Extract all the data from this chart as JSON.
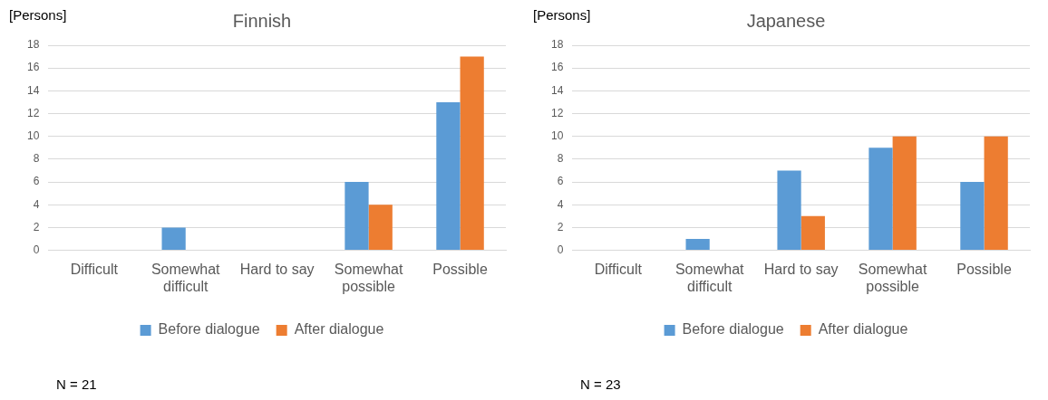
{
  "chart_data": [
    {
      "type": "bar",
      "title": "Finnish",
      "ylabel": "[Persons]",
      "categories": [
        "Difficult",
        "Somewhat difficult",
        "Hard to say",
        "Somewhat possible",
        "Possible"
      ],
      "series": [
        {
          "name": "Before dialogue",
          "color": "#5b9bd5",
          "values": [
            0,
            2,
            0,
            6,
            13
          ]
        },
        {
          "name": "After dialogue",
          "color": "#ed7d31",
          "values": [
            0,
            0,
            0,
            4,
            17
          ]
        }
      ],
      "ylim": [
        0,
        18
      ],
      "yticks": [
        0,
        2,
        4,
        6,
        8,
        10,
        12,
        14,
        16,
        18
      ],
      "grid": "y",
      "legend": "bottom",
      "annotations": [
        "N = 21"
      ]
    },
    {
      "type": "bar",
      "title": "Japanese",
      "ylabel": "[Persons]",
      "categories": [
        "Difficult",
        "Somewhat difficult",
        "Hard to say",
        "Somewhat possible",
        "Possible"
      ],
      "series": [
        {
          "name": "Before dialogue",
          "color": "#5b9bd5",
          "values": [
            0,
            1,
            7,
            9,
            6
          ]
        },
        {
          "name": "After dialogue",
          "color": "#ed7d31",
          "values": [
            0,
            0,
            3,
            10,
            10
          ]
        }
      ],
      "ylim": [
        0,
        18
      ],
      "yticks": [
        0,
        2,
        4,
        6,
        8,
        10,
        12,
        14,
        16,
        18
      ],
      "grid": "y",
      "legend": "bottom",
      "annotations": [
        "N = 23"
      ]
    }
  ]
}
